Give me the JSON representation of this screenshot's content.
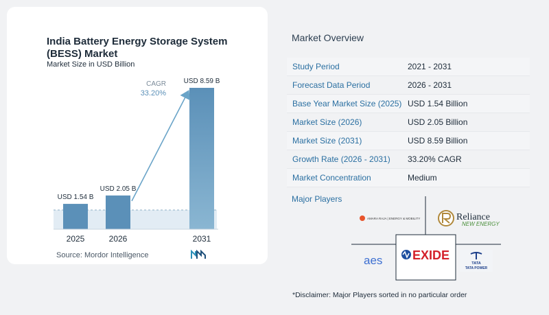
{
  "chart_data": {
    "type": "bar",
    "title": "India Battery Energy Storage System (BESS) Market",
    "subtitle": "Market Size in USD Billion",
    "categories": [
      "2025",
      "2026",
      "2031"
    ],
    "values": [
      1.54,
      2.05,
      8.59
    ],
    "data_labels": [
      "USD 1.54 B",
      "USD 2.05 B",
      "USD 8.59 B"
    ],
    "cagr_label": "CAGR",
    "cagr_value": "33.20%",
    "colors": {
      "bar_light": "#8ab6d2",
      "bar_dark": "#5b90b8",
      "arrow": "#6aa4c8",
      "band": "#e2ecf4"
    }
  },
  "source": "Source:  Mordor Intelligence",
  "overview": {
    "title": "Market Overview",
    "rows": [
      {
        "label": "Study Period",
        "value": "2021 - 2031"
      },
      {
        "label": "Forecast Data Period",
        "value": "2026 - 2031"
      },
      {
        "label": "Base Year Market Size (2025)",
        "value": "USD 1.54 Billion"
      },
      {
        "label": "Market Size (2026)",
        "value": "USD 2.05 Billion"
      },
      {
        "label": "Market Size (2031)",
        "value": "USD 8.59 Billion"
      },
      {
        "label": "Growth Rate (2026 - 2031)",
        "value": "33.20% CAGR"
      },
      {
        "label": "Market Concentration",
        "value": "Medium"
      }
    ]
  },
  "players": {
    "title": "Major Players",
    "logos": {
      "amara": "AMARA RAJA | ENERGY & MOBILITY",
      "reliance_1": "Reliance",
      "reliance_2": "NEW ENERGY",
      "aes": "aes",
      "exide": "EXIDE",
      "tata_1": "TATA",
      "tata_2": "TATA POWER"
    }
  },
  "disclaimer": "*Disclaimer: Major Players sorted in no particular order"
}
